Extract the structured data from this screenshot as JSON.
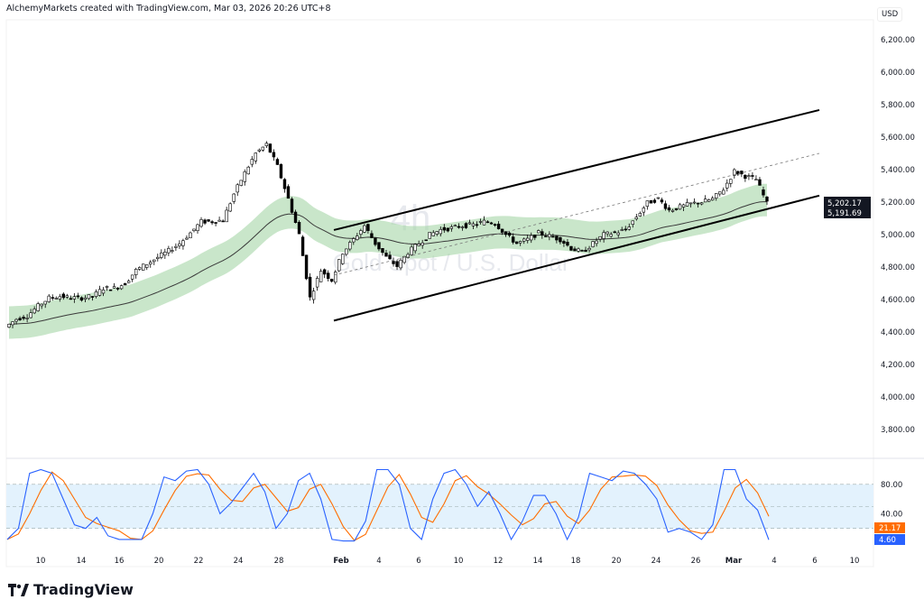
{
  "header": {
    "text": "AlchemyMarkets created with TradingView.com, Mar 03, 2026 20:26 UTC+8"
  },
  "currency": "USD",
  "watermark": {
    "interval": "4h",
    "symbol": "Gold Spot / U.S. Dollar"
  },
  "logo": {
    "text": "TradingView"
  },
  "colors": {
    "up": "#ffffff",
    "down": "#000000",
    "band": "#a5d6a7",
    "ma": "#3a3a3a",
    "stoch_k": "#2962ff",
    "stoch_d": "#ff6d00",
    "stoch_bg": "#e3f2fd"
  },
  "chart_data": {
    "type": "candlestick",
    "price_axis": {
      "ticks": [
        "6,200.00",
        "6,000.00",
        "5,800.00",
        "5,600.00",
        "5,400.00",
        "5,200.00",
        "5,000.00",
        "4,800.00",
        "4,600.00",
        "4,400.00",
        "4,200.00",
        "4,000.00",
        "3,800.00"
      ],
      "ylim": [
        3700,
        6220
      ]
    },
    "time_axis": {
      "ticks": [
        "10",
        "14",
        "16",
        "20",
        "22",
        "24",
        "28",
        "Feb",
        "4",
        "6",
        "10",
        "12",
        "14",
        "18",
        "20",
        "24",
        "26",
        "Mar",
        "4",
        "6",
        "10"
      ]
    },
    "closes": [
      4430,
      4480,
      4500,
      4560,
      4610,
      4620,
      4610,
      4610,
      4620,
      4670,
      4670,
      4700,
      4780,
      4820,
      4860,
      4900,
      4945,
      5010,
      5080,
      5080,
      5090,
      5250,
      5380,
      5500,
      5555,
      5420,
      5220,
      5000,
      4610,
      4780,
      4720,
      4890,
      4970,
      5055,
      4945,
      4860,
      4805,
      4890,
      4945,
      5000,
      5030,
      5040,
      5055,
      5060,
      5080,
      5070,
      5000,
      4945,
      4970,
      5010,
      4990,
      4970,
      4915,
      4890,
      4945,
      5000,
      5010,
      5030,
      5110,
      5195,
      5220,
      5150,
      5170,
      5190,
      5200,
      5220,
      5280,
      5390,
      5360,
      5340,
      5191.69
    ],
    "last_prices": {
      "close": "5,191.69",
      "high_label": "5,202.17"
    },
    "channel": {
      "upper": [
        5028,
        5767
      ],
      "middle_dashed": [
        4750,
        5500
      ],
      "lower": [
        4470,
        5240
      ]
    },
    "stochastic": {
      "levels": [
        "80.00",
        "40.00"
      ],
      "upper_band": 80,
      "lower_band": 20,
      "k": [
        5,
        20,
        95,
        100,
        95,
        60,
        25,
        20,
        35,
        10,
        5,
        5,
        5,
        40,
        90,
        85,
        98,
        100,
        80,
        40,
        55,
        75,
        95,
        70,
        20,
        40,
        85,
        95,
        60,
        5,
        3,
        3,
        30,
        100,
        100,
        80,
        20,
        5,
        60,
        95,
        100,
        80,
        50,
        70,
        40,
        5,
        30,
        65,
        65,
        40,
        5,
        35,
        95,
        90,
        85,
        98,
        95,
        80,
        60,
        15,
        20,
        15,
        5,
        25,
        100,
        100,
        60,
        45,
        4.6
      ],
      "k_label": "4.60",
      "d_label": "21.17"
    }
  }
}
